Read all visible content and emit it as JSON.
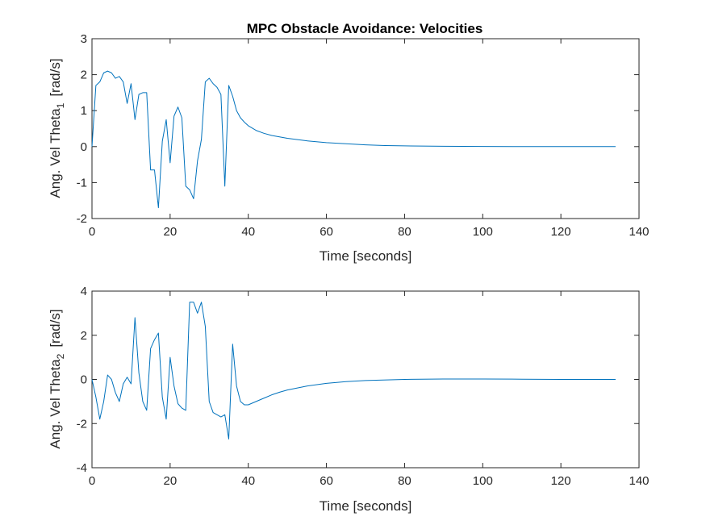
{
  "colors": {
    "series": "#0072bd",
    "axis": "#262626",
    "background": "#ffffff"
  },
  "chart_data": [
    {
      "type": "line",
      "title": "MPC Obstacle Avoidance: Velocities",
      "xlabel": "Time [seconds]",
      "ylabel": "Ang. Vel Theta",
      "ylabel_subscript": "1",
      "ylabel_unit": "[rad/s]",
      "xlim": [
        0,
        140
      ],
      "ylim": [
        -2,
        3
      ],
      "xticks": [
        0,
        20,
        40,
        60,
        80,
        100,
        120,
        140
      ],
      "yticks": [
        -2,
        -1,
        0,
        1,
        2,
        3
      ],
      "grid": false,
      "series": [
        {
          "x": [
            0,
            1,
            2,
            3,
            4,
            5,
            6,
            7,
            8,
            9,
            10,
            11,
            12,
            13,
            14,
            15,
            16,
            17,
            18,
            19,
            20,
            21,
            22,
            23,
            24,
            25,
            26,
            27,
            28,
            29,
            30,
            31,
            32,
            33,
            34,
            35,
            36,
            37,
            38,
            39,
            40,
            42,
            44,
            46,
            48,
            50,
            55,
            60,
            65,
            70,
            75,
            80,
            90,
            100,
            110,
            120,
            134
          ],
          "y": [
            0,
            1.7,
            1.8,
            2.05,
            2.1,
            2.05,
            1.9,
            1.95,
            1.8,
            1.2,
            1.75,
            0.75,
            1.45,
            1.5,
            1.5,
            -0.65,
            -0.65,
            -1.7,
            0.15,
            0.75,
            -0.45,
            0.85,
            1.1,
            0.8,
            -1.1,
            -1.2,
            -1.45,
            -0.4,
            0.2,
            1.8,
            1.9,
            1.75,
            1.65,
            1.45,
            -1.1,
            1.7,
            1.4,
            1.0,
            0.8,
            0.68,
            0.58,
            0.45,
            0.37,
            0.31,
            0.27,
            0.23,
            0.16,
            0.11,
            0.08,
            0.05,
            0.03,
            0.02,
            0.01,
            0.005,
            0.0,
            0.0,
            0.0
          ]
        }
      ]
    },
    {
      "type": "line",
      "xlabel": "Time [seconds]",
      "ylabel": "Ang. Vel Theta",
      "ylabel_subscript": "2",
      "ylabel_unit": "[rad/s]",
      "xlim": [
        0,
        140
      ],
      "ylim": [
        -4,
        4
      ],
      "xticks": [
        0,
        20,
        40,
        60,
        80,
        100,
        120,
        140
      ],
      "yticks": [
        -4,
        -2,
        0,
        2,
        4
      ],
      "grid": false,
      "series": [
        {
          "x": [
            0,
            1,
            2,
            3,
            4,
            5,
            6,
            7,
            8,
            9,
            10,
            11,
            12,
            13,
            14,
            15,
            16,
            17,
            18,
            19,
            20,
            21,
            22,
            23,
            24,
            25,
            26,
            27,
            28,
            29,
            30,
            31,
            32,
            33,
            34,
            35,
            36,
            37,
            38,
            39,
            40,
            42,
            44,
            46,
            48,
            50,
            55,
            60,
            65,
            70,
            80,
            90,
            100,
            110,
            120,
            134
          ],
          "y": [
            0,
            -0.8,
            -1.8,
            -1.0,
            0.2,
            0.0,
            -0.6,
            -1.0,
            -0.2,
            0.1,
            -0.2,
            2.8,
            0.3,
            -1.0,
            -1.4,
            1.4,
            1.8,
            2.1,
            -0.8,
            -1.8,
            1.0,
            -0.3,
            -1.1,
            -1.3,
            -1.4,
            3.5,
            3.5,
            3.0,
            3.5,
            2.4,
            -1.0,
            -1.5,
            -1.6,
            -1.7,
            -1.6,
            -2.7,
            1.6,
            -0.3,
            -1.0,
            -1.15,
            -1.15,
            -1.0,
            -0.85,
            -0.7,
            -0.58,
            -0.48,
            -0.3,
            -0.18,
            -0.1,
            -0.05,
            0.0,
            0.02,
            0.02,
            0.01,
            0.0,
            0.0
          ]
        }
      ]
    }
  ]
}
